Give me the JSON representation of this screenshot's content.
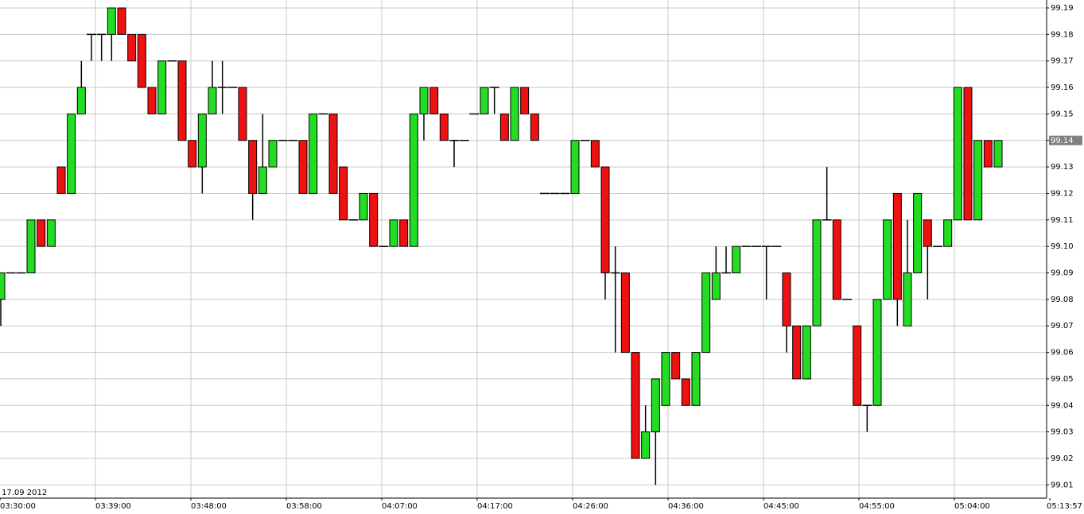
{
  "chart_data": {
    "type": "candlestick",
    "date_label": "17.09 2012",
    "categories": [
      null,
      null,
      null,
      null,
      null,
      null,
      null,
      null,
      null,
      null,
      null,
      null,
      null,
      null,
      null,
      null,
      null,
      null,
      null,
      null,
      null,
      null,
      null,
      null,
      null,
      null,
      null,
      null,
      null,
      null,
      null,
      null,
      null,
      null,
      null,
      null,
      null,
      null,
      null,
      null,
      null,
      null,
      null,
      null,
      null,
      null,
      null,
      null,
      null,
      null,
      null,
      null,
      null,
      null,
      null,
      null,
      null,
      null,
      null,
      null,
      null,
      null,
      null,
      null,
      null,
      null,
      null,
      null,
      null,
      null,
      null,
      null,
      null,
      null,
      null,
      null,
      null,
      null,
      null,
      null,
      null,
      null,
      null,
      null,
      null,
      null,
      null,
      null,
      null,
      null,
      null,
      null,
      null,
      null,
      null,
      null,
      null,
      null,
      null,
      null
    ],
    "open": [
      99.08,
      99.09,
      99.09,
      99.09,
      99.11,
      99.1,
      99.13,
      99.12,
      99.15,
      99.18,
      99.18,
      99.18,
      99.19,
      99.18,
      99.18,
      99.16,
      99.15,
      99.17,
      99.17,
      99.14,
      99.13,
      99.15,
      99.16,
      99.16,
      99.16,
      99.14,
      99.12,
      99.13,
      99.14,
      99.14,
      99.14,
      99.12,
      99.15,
      99.15,
      99.13,
      99.11,
      99.11,
      99.12,
      99.1,
      99.1,
      99.11,
      99.1,
      99.15,
      99.16,
      99.15,
      99.14,
      99.14,
      99.15,
      99.15,
      99.16,
      99.15,
      99.14,
      99.16,
      99.15,
      99.12,
      99.12,
      99.12,
      99.12,
      99.14,
      99.14,
      99.13,
      99.09,
      99.09,
      99.06,
      99.02,
      99.03,
      99.04,
      99.06,
      99.05,
      99.04,
      99.06,
      99.08,
      99.09,
      99.09,
      99.1,
      99.1,
      99.1,
      99.1,
      99.09,
      99.07,
      99.05,
      99.07,
      99.11,
      99.11,
      99.08,
      99.07,
      99.04,
      99.04,
      99.08,
      99.12,
      99.07,
      99.09,
      99.11,
      99.1,
      99.1,
      99.11,
      99.16,
      99.11,
      99.14,
      99.13
    ],
    "high": [
      99.09,
      99.09,
      99.09,
      99.11,
      99.11,
      99.11,
      99.13,
      99.15,
      99.17,
      99.18,
      99.18,
      99.19,
      99.19,
      99.18,
      99.18,
      99.16,
      99.17,
      99.17,
      99.17,
      99.14,
      99.15,
      99.17,
      99.17,
      99.16,
      99.16,
      99.14,
      99.15,
      99.14,
      99.14,
      99.14,
      99.14,
      99.15,
      99.15,
      99.15,
      99.13,
      99.11,
      99.12,
      99.12,
      99.1,
      99.11,
      99.11,
      99.15,
      99.16,
      99.16,
      99.15,
      99.14,
      99.14,
      99.15,
      99.16,
      99.16,
      99.15,
      99.16,
      99.16,
      99.15,
      99.12,
      99.12,
      99.12,
      99.14,
      99.14,
      99.14,
      99.13,
      99.1,
      99.09,
      99.06,
      99.04,
      99.05,
      99.06,
      99.06,
      99.05,
      99.06,
      99.09,
      99.1,
      99.1,
      99.1,
      99.1,
      99.1,
      99.1,
      99.1,
      99.09,
      99.07,
      99.07,
      99.11,
      99.13,
      99.11,
      99.08,
      99.07,
      99.04,
      99.08,
      99.11,
      99.12,
      99.11,
      99.12,
      99.11,
      99.1,
      99.11,
      99.16,
      99.16,
      99.14,
      99.14,
      99.14
    ],
    "low": [
      99.07,
      99.09,
      99.09,
      99.09,
      99.1,
      99.1,
      99.12,
      99.12,
      99.15,
      99.17,
      99.17,
      99.17,
      99.18,
      99.17,
      99.16,
      99.15,
      99.15,
      99.17,
      99.14,
      99.13,
      99.12,
      99.15,
      99.15,
      99.16,
      99.14,
      99.11,
      99.12,
      99.13,
      99.14,
      99.14,
      99.12,
      99.12,
      99.15,
      99.12,
      99.11,
      99.11,
      99.11,
      99.1,
      99.1,
      99.1,
      99.1,
      99.1,
      99.14,
      99.15,
      99.14,
      99.13,
      99.14,
      99.15,
      99.15,
      99.15,
      99.14,
      99.14,
      99.15,
      99.14,
      99.12,
      99.12,
      99.12,
      99.12,
      99.14,
      99.13,
      99.08,
      99.06,
      99.06,
      99.02,
      99.02,
      99.01,
      99.04,
      99.05,
      99.04,
      99.04,
      99.06,
      99.08,
      99.09,
      99.09,
      99.1,
      99.1,
      99.08,
      99.1,
      99.06,
      99.05,
      99.05,
      99.07,
      99.11,
      99.08,
      99.08,
      99.04,
      99.03,
      99.04,
      99.08,
      99.07,
      99.07,
      99.09,
      99.08,
      99.1,
      99.1,
      99.11,
      99.11,
      99.11,
      99.13,
      99.13
    ],
    "close": [
      99.09,
      99.09,
      99.09,
      99.11,
      99.1,
      99.11,
      99.12,
      99.15,
      99.16,
      99.18,
      99.18,
      99.19,
      99.18,
      99.17,
      99.16,
      99.15,
      99.17,
      99.17,
      99.14,
      99.13,
      99.15,
      99.16,
      99.16,
      99.16,
      99.14,
      99.12,
      99.13,
      99.14,
      99.14,
      99.14,
      99.12,
      99.15,
      99.15,
      99.12,
      99.11,
      99.11,
      99.12,
      99.1,
      99.1,
      99.11,
      99.1,
      99.15,
      99.16,
      99.15,
      99.14,
      99.14,
      99.14,
      99.15,
      99.16,
      99.16,
      99.14,
      99.16,
      99.15,
      99.14,
      99.12,
      99.12,
      99.12,
      99.14,
      99.14,
      99.13,
      99.09,
      99.09,
      99.06,
      99.02,
      99.03,
      99.05,
      99.06,
      99.05,
      99.04,
      99.06,
      99.09,
      99.09,
      99.09,
      99.1,
      99.1,
      99.1,
      99.1,
      99.1,
      99.07,
      99.05,
      99.07,
      99.11,
      99.11,
      99.08,
      99.08,
      99.04,
      99.04,
      99.08,
      99.11,
      99.08,
      99.09,
      99.12,
      99.1,
      99.1,
      99.11,
      99.16,
      99.11,
      99.14,
      99.13,
      99.14
    ],
    "up_color": "#22dd22",
    "down_color": "#ee1111",
    "ylim": [
      99.005,
      99.193
    ],
    "yticks": [
      99.01,
      99.02,
      99.03,
      99.04,
      99.05,
      99.06,
      99.07,
      99.08,
      99.09,
      {
        "value": 99.1,
        "label": "99.10"
      },
      99.11,
      99.12,
      99.13,
      99.14,
      99.15,
      99.16,
      99.17,
      99.18,
      99.19
    ],
    "last_price": 99.14,
    "xtick_labels": [
      "03:30:00",
      "03:39:00",
      "03:48:00",
      "03:58:00",
      "04:07:00",
      "04:17:00",
      "04:26:00",
      "04:36:00",
      "04:45:00",
      "04:55:00",
      "05:04:00",
      "05:13:57"
    ],
    "grid": true
  }
}
